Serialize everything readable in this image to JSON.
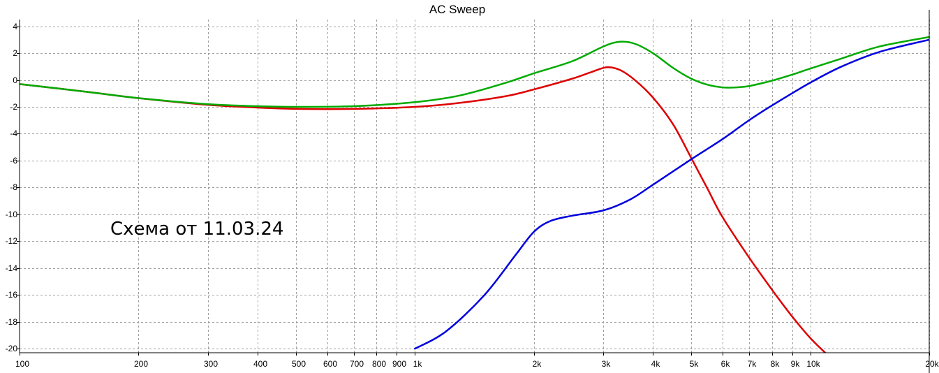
{
  "chart_data": {
    "type": "line",
    "title": "AC Sweep",
    "xscale": "log",
    "xlim": [
      100,
      20000
    ],
    "ylim": [
      -20.3,
      4.5
    ],
    "grid": true,
    "x_ticks": [
      {
        "value": 100,
        "label": "100"
      },
      {
        "value": 200,
        "label": "200"
      },
      {
        "value": 300,
        "label": "300"
      },
      {
        "value": 400,
        "label": "400"
      },
      {
        "value": 500,
        "label": "500"
      },
      {
        "value": 600,
        "label": "600"
      },
      {
        "value": 700,
        "label": "700"
      },
      {
        "value": 800,
        "label": "800"
      },
      {
        "value": 900,
        "label": "900"
      },
      {
        "value": 1000,
        "label": "1k"
      },
      {
        "value": 2000,
        "label": "2k"
      },
      {
        "value": 3000,
        "label": "3k"
      },
      {
        "value": 4000,
        "label": "4k"
      },
      {
        "value": 5000,
        "label": "5k"
      },
      {
        "value": 6000,
        "label": "6k"
      },
      {
        "value": 7000,
        "label": "7k"
      },
      {
        "value": 8000,
        "label": "8k"
      },
      {
        "value": 9000,
        "label": "9k"
      },
      {
        "value": 10000,
        "label": "10k"
      },
      {
        "value": 20000,
        "label": "20k"
      }
    ],
    "y_ticks": [
      {
        "value": 4,
        "label": "4"
      },
      {
        "value": 2,
        "label": "2"
      },
      {
        "value": 0,
        "label": "0"
      },
      {
        "value": -2,
        "label": "-2"
      },
      {
        "value": -4,
        "label": "-4"
      },
      {
        "value": -6,
        "label": "-6"
      },
      {
        "value": -8,
        "label": "-8"
      },
      {
        "value": -10,
        "label": "-10"
      },
      {
        "value": -12,
        "label": "-12"
      },
      {
        "value": -14,
        "label": "-14"
      },
      {
        "value": -16,
        "label": "-16"
      },
      {
        "value": -18,
        "label": "-18"
      },
      {
        "value": -20,
        "label": "-20"
      }
    ],
    "annotation": "Схема от 11.03.24",
    "series": [
      {
        "color": "#dd0000",
        "points": [
          [
            100,
            -0.3
          ],
          [
            150,
            -0.9
          ],
          [
            200,
            -1.35
          ],
          [
            300,
            -1.85
          ],
          [
            400,
            -2.05
          ],
          [
            500,
            -2.15
          ],
          [
            700,
            -2.15
          ],
          [
            1000,
            -2.0
          ],
          [
            1300,
            -1.7
          ],
          [
            1700,
            -1.2
          ],
          [
            2000,
            -0.7
          ],
          [
            2500,
            0.1
          ],
          [
            2800,
            0.6
          ],
          [
            3060,
            0.95
          ],
          [
            3300,
            0.75
          ],
          [
            3600,
            0.0
          ],
          [
            4000,
            -1.3
          ],
          [
            4500,
            -3.3
          ],
          [
            5000,
            -5.8
          ],
          [
            5500,
            -8.1
          ],
          [
            6000,
            -10.2
          ],
          [
            7000,
            -13.2
          ],
          [
            8000,
            -15.6
          ],
          [
            9000,
            -17.6
          ],
          [
            10000,
            -19.2
          ],
          [
            11000,
            -20.4
          ]
        ]
      },
      {
        "color": "#0000dd",
        "points": [
          [
            1000,
            -20.0
          ],
          [
            1200,
            -18.7
          ],
          [
            1500,
            -16.0
          ],
          [
            1800,
            -13.0
          ],
          [
            2000,
            -11.3
          ],
          [
            2200,
            -10.5
          ],
          [
            2500,
            -10.1
          ],
          [
            3000,
            -9.7
          ],
          [
            3500,
            -8.9
          ],
          [
            4000,
            -7.8
          ],
          [
            5000,
            -5.9
          ],
          [
            6000,
            -4.4
          ],
          [
            7000,
            -3.0
          ],
          [
            8000,
            -1.9
          ],
          [
            10000,
            -0.2
          ],
          [
            12000,
            1.0
          ],
          [
            15000,
            2.1
          ],
          [
            20000,
            3.0
          ]
        ]
      },
      {
        "color": "#00aa00",
        "points": [
          [
            100,
            -0.3
          ],
          [
            150,
            -0.9
          ],
          [
            200,
            -1.35
          ],
          [
            300,
            -1.8
          ],
          [
            400,
            -1.95
          ],
          [
            500,
            -2.0
          ],
          [
            700,
            -1.95
          ],
          [
            1000,
            -1.65
          ],
          [
            1300,
            -1.15
          ],
          [
            1700,
            -0.2
          ],
          [
            2000,
            0.5
          ],
          [
            2500,
            1.4
          ],
          [
            3000,
            2.5
          ],
          [
            3300,
            2.85
          ],
          [
            3600,
            2.7
          ],
          [
            4000,
            2.0
          ],
          [
            4500,
            0.9
          ],
          [
            5000,
            0.1
          ],
          [
            5500,
            -0.35
          ],
          [
            6000,
            -0.55
          ],
          [
            6500,
            -0.55
          ],
          [
            7000,
            -0.45
          ],
          [
            8000,
            -0.05
          ],
          [
            9000,
            0.4
          ],
          [
            10000,
            0.85
          ],
          [
            12000,
            1.6
          ],
          [
            15000,
            2.5
          ],
          [
            20000,
            3.2
          ]
        ]
      }
    ]
  }
}
